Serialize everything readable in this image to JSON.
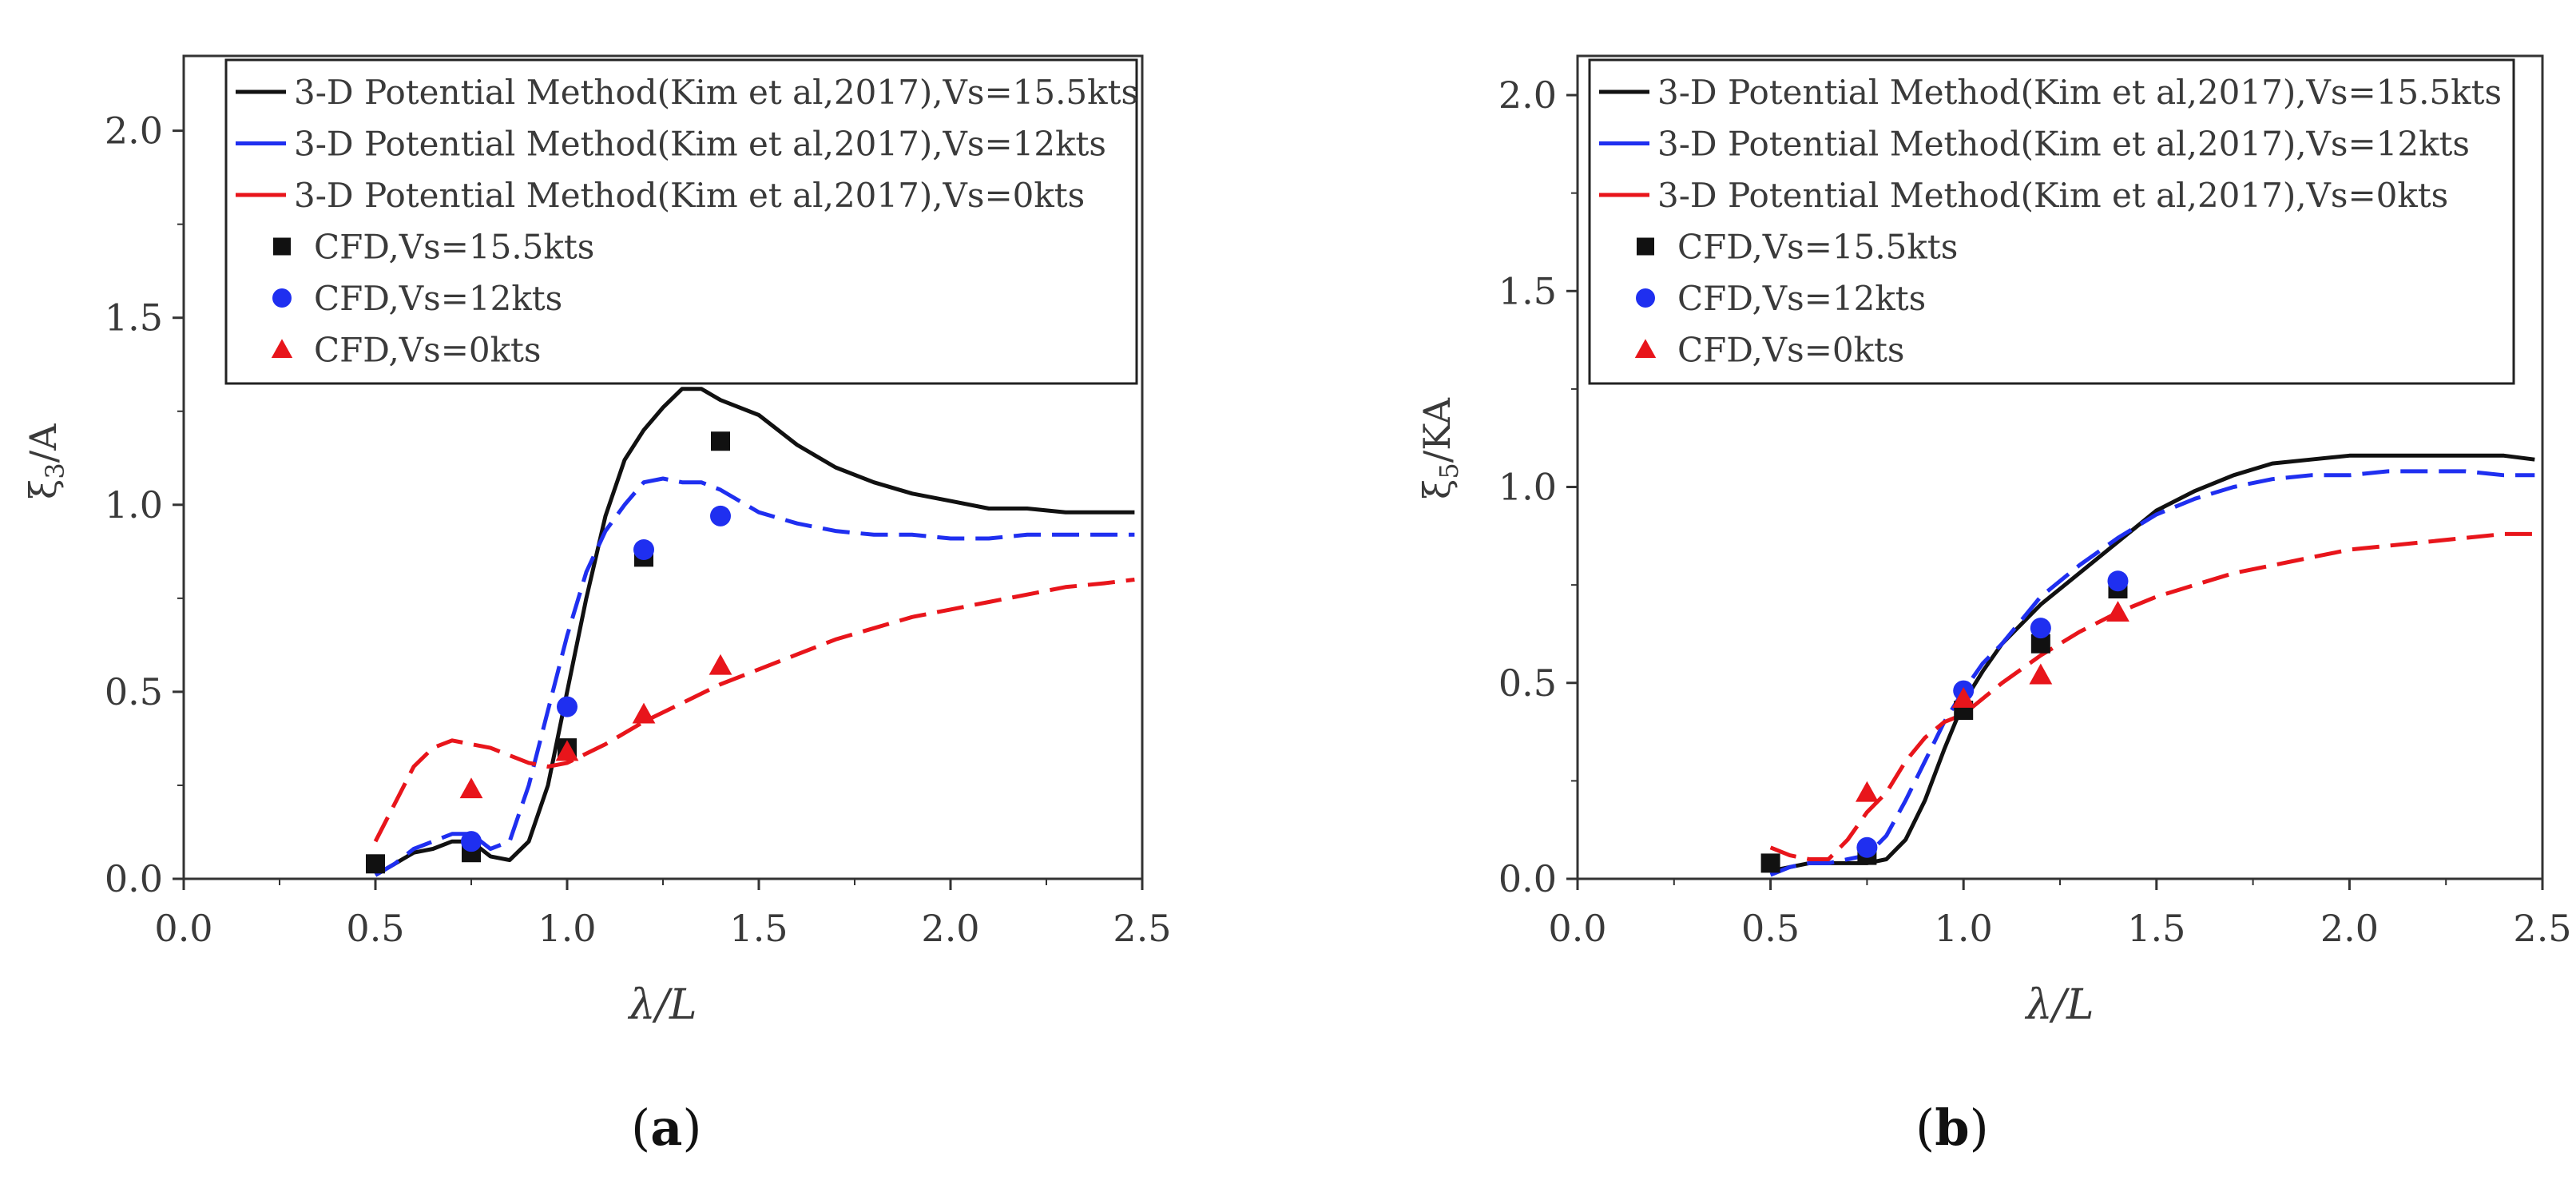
{
  "chart_data": [
    {
      "type": "line",
      "panel_label": "a",
      "xlabel": "λ/L",
      "ylabel": "ξ3/A",
      "ylabel_main": "ξ",
      "ylabel_sub": "3",
      "ylabel_tail": "/A",
      "xlim": [
        0.0,
        2.5
      ],
      "ylim": [
        0.0,
        2.2
      ],
      "x_ticks": [
        "0.0",
        "0.5",
        "1.0",
        "1.5",
        "2.0",
        "2.5"
      ],
      "y_ticks": [
        "0.0",
        "0.5",
        "1.0",
        "1.5",
        "2.0"
      ],
      "x_tick_values": [
        0.0,
        0.5,
        1.0,
        1.5,
        2.0,
        2.5
      ],
      "y_tick_values": [
        0.0,
        0.5,
        1.0,
        1.5,
        2.0
      ],
      "legend": "top-right",
      "series": [
        {
          "name": "3-D Potential Method(Kim et al,2017),Vs=15.5kts",
          "kind": "line",
          "color": "#111111",
          "dash": "solid",
          "x": [
            0.5,
            0.55,
            0.6,
            0.65,
            0.7,
            0.75,
            0.8,
            0.85,
            0.9,
            0.95,
            1.0,
            1.05,
            1.1,
            1.15,
            1.2,
            1.25,
            1.3,
            1.35,
            1.4,
            1.5,
            1.6,
            1.7,
            1.8,
            1.9,
            2.0,
            2.1,
            2.2,
            2.3,
            2.4,
            2.48
          ],
          "y": [
            0.01,
            0.04,
            0.07,
            0.08,
            0.1,
            0.1,
            0.06,
            0.05,
            0.1,
            0.25,
            0.5,
            0.75,
            0.97,
            1.12,
            1.2,
            1.26,
            1.31,
            1.31,
            1.28,
            1.24,
            1.16,
            1.1,
            1.06,
            1.03,
            1.01,
            0.99,
            0.99,
            0.98,
            0.98,
            0.98
          ]
        },
        {
          "name": "3-D Potential Method(Kim et al,2017),Vs=12kts",
          "kind": "line",
          "color": "#1f2ff0",
          "dash": "dashed",
          "x": [
            0.5,
            0.55,
            0.6,
            0.65,
            0.7,
            0.75,
            0.8,
            0.85,
            0.9,
            0.95,
            1.0,
            1.05,
            1.1,
            1.15,
            1.2,
            1.25,
            1.3,
            1.35,
            1.4,
            1.5,
            1.6,
            1.7,
            1.8,
            1.9,
            2.0,
            2.1,
            2.2,
            2.3,
            2.4,
            2.48
          ],
          "y": [
            0.01,
            0.04,
            0.08,
            0.1,
            0.12,
            0.12,
            0.08,
            0.1,
            0.25,
            0.45,
            0.65,
            0.82,
            0.93,
            1.0,
            1.06,
            1.07,
            1.06,
            1.06,
            1.04,
            0.98,
            0.95,
            0.93,
            0.92,
            0.92,
            0.91,
            0.91,
            0.92,
            0.92,
            0.92,
            0.92
          ]
        },
        {
          "name": "3-D Potential Method(Kim et al,2017),Vs=0kts",
          "kind": "line",
          "color": "#e8151b",
          "dash": "dashed",
          "x": [
            0.5,
            0.55,
            0.6,
            0.65,
            0.7,
            0.75,
            0.8,
            0.85,
            0.9,
            0.95,
            1.0,
            1.1,
            1.2,
            1.3,
            1.4,
            1.5,
            1.6,
            1.7,
            1.8,
            1.9,
            2.0,
            2.1,
            2.2,
            2.3,
            2.4,
            2.48
          ],
          "y": [
            0.1,
            0.2,
            0.3,
            0.35,
            0.37,
            0.36,
            0.35,
            0.33,
            0.31,
            0.3,
            0.31,
            0.36,
            0.42,
            0.47,
            0.52,
            0.56,
            0.6,
            0.64,
            0.67,
            0.7,
            0.72,
            0.74,
            0.76,
            0.78,
            0.79,
            0.8
          ]
        },
        {
          "name": "CFD,Vs=15.5kts",
          "kind": "marker",
          "marker": "square",
          "color": "#111111",
          "x": [
            0.5,
            0.75,
            1.0,
            1.2,
            1.4
          ],
          "y": [
            0.04,
            0.07,
            0.35,
            0.86,
            1.17
          ]
        },
        {
          "name": "CFD,Vs=12kts",
          "kind": "marker",
          "marker": "circle",
          "color": "#1f2ff0",
          "x": [
            0.75,
            1.0,
            1.2,
            1.4
          ],
          "y": [
            0.1,
            0.46,
            0.88,
            0.97
          ]
        },
        {
          "name": "CFD,Vs=0kts",
          "kind": "marker",
          "marker": "triangle",
          "color": "#e8151b",
          "x": [
            0.75,
            1.0,
            1.2,
            1.4
          ],
          "y": [
            0.24,
            0.34,
            0.44,
            0.57
          ]
        }
      ]
    },
    {
      "type": "line",
      "panel_label": "b",
      "xlabel": "λ/L",
      "ylabel": "ξ5/KA",
      "ylabel_main": "ξ",
      "ylabel_sub": "5",
      "ylabel_tail": "/KA",
      "xlim": [
        0.0,
        2.5
      ],
      "ylim": [
        0.0,
        2.1
      ],
      "x_ticks": [
        "0.0",
        "0.5",
        "1.0",
        "1.5",
        "2.0",
        "2.5"
      ],
      "y_ticks": [
        "0.0",
        "0.5",
        "1.0",
        "1.5",
        "2.0"
      ],
      "x_tick_values": [
        0.0,
        0.5,
        1.0,
        1.5,
        2.0,
        2.5
      ],
      "y_tick_values": [
        0.0,
        0.5,
        1.0,
        1.5,
        2.0
      ],
      "legend": "top-right",
      "series": [
        {
          "name": "3-D Potential Method(Kim et al,2017),Vs=15.5kts",
          "kind": "line",
          "color": "#111111",
          "dash": "solid",
          "x": [
            0.5,
            0.55,
            0.6,
            0.65,
            0.7,
            0.75,
            0.8,
            0.85,
            0.9,
            0.95,
            1.0,
            1.05,
            1.1,
            1.2,
            1.3,
            1.4,
            1.5,
            1.6,
            1.7,
            1.8,
            1.9,
            2.0,
            2.1,
            2.2,
            2.3,
            2.4,
            2.48
          ],
          "y": [
            0.02,
            0.03,
            0.04,
            0.04,
            0.04,
            0.04,
            0.05,
            0.1,
            0.2,
            0.33,
            0.45,
            0.53,
            0.6,
            0.7,
            0.78,
            0.86,
            0.94,
            0.99,
            1.03,
            1.06,
            1.07,
            1.08,
            1.08,
            1.08,
            1.08,
            1.08,
            1.07
          ]
        },
        {
          "name": "3-D Potential Method(Kim et al,2017),Vs=12kts",
          "kind": "line",
          "color": "#1f2ff0",
          "dash": "dashed",
          "x": [
            0.5,
            0.55,
            0.6,
            0.65,
            0.7,
            0.75,
            0.8,
            0.85,
            0.9,
            0.95,
            1.0,
            1.05,
            1.1,
            1.2,
            1.3,
            1.4,
            1.5,
            1.6,
            1.7,
            1.8,
            1.9,
            2.0,
            2.1,
            2.2,
            2.3,
            2.4,
            2.48
          ],
          "y": [
            0.01,
            0.03,
            0.04,
            0.04,
            0.05,
            0.06,
            0.11,
            0.2,
            0.3,
            0.4,
            0.48,
            0.55,
            0.6,
            0.72,
            0.8,
            0.87,
            0.93,
            0.97,
            1.0,
            1.02,
            1.03,
            1.03,
            1.04,
            1.04,
            1.04,
            1.03,
            1.03
          ]
        },
        {
          "name": "3-D Potential Method(Kim et al,2017),Vs=0kts",
          "kind": "line",
          "color": "#e8151b",
          "dash": "dashed",
          "x": [
            0.5,
            0.55,
            0.6,
            0.65,
            0.7,
            0.75,
            0.8,
            0.85,
            0.9,
            0.95,
            1.0,
            1.1,
            1.2,
            1.3,
            1.4,
            1.5,
            1.6,
            1.7,
            1.8,
            1.9,
            2.0,
            2.1,
            2.2,
            2.3,
            2.4,
            2.48
          ],
          "y": [
            0.08,
            0.06,
            0.05,
            0.05,
            0.1,
            0.17,
            0.22,
            0.3,
            0.36,
            0.4,
            0.42,
            0.5,
            0.57,
            0.63,
            0.68,
            0.72,
            0.75,
            0.78,
            0.8,
            0.82,
            0.84,
            0.85,
            0.86,
            0.87,
            0.88,
            0.88
          ]
        },
        {
          "name": "CFD,Vs=15.5kts",
          "kind": "marker",
          "marker": "square",
          "color": "#111111",
          "x": [
            0.5,
            0.75,
            1.0,
            1.2,
            1.4
          ],
          "y": [
            0.04,
            0.06,
            0.43,
            0.6,
            0.74
          ]
        },
        {
          "name": "CFD,Vs=12kts",
          "kind": "marker",
          "marker": "circle",
          "color": "#1f2ff0",
          "x": [
            0.75,
            1.0,
            1.2,
            1.4
          ],
          "y": [
            0.08,
            0.48,
            0.64,
            0.76
          ]
        },
        {
          "name": "CFD,Vs=0kts",
          "kind": "marker",
          "marker": "triangle",
          "color": "#e8151b",
          "x": [
            0.75,
            1.0,
            1.2,
            1.4
          ],
          "y": [
            0.22,
            0.46,
            0.52,
            0.68
          ]
        }
      ]
    }
  ]
}
